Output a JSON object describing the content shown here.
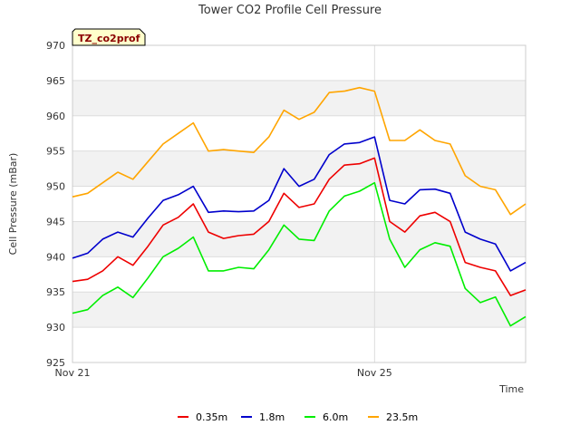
{
  "chart_data": {
    "type": "line",
    "title": "Tower CO2 Profile Cell Pressure",
    "xlabel": "Time",
    "ylabel": "Cell Pressure (mBar)",
    "badge": "TZ_co2prof",
    "ylim": [
      925,
      970
    ],
    "xlim": [
      0,
      7.5
    ],
    "y_ticks": [
      925,
      930,
      935,
      940,
      945,
      950,
      955,
      960,
      965,
      970
    ],
    "x_ticks": [
      {
        "x": 0,
        "label": "Nov 21"
      },
      {
        "x": 5,
        "label": "Nov 25"
      }
    ],
    "grid": true,
    "legend_position": "bottom",
    "series": [
      {
        "name": "0.35m",
        "color": "#ee0000",
        "x": [
          0,
          0.25,
          0.5,
          0.75,
          1.0,
          1.25,
          1.5,
          1.75,
          2.0,
          2.25,
          2.5,
          2.75,
          3.0,
          3.25,
          3.5,
          3.75,
          4.0,
          4.25,
          4.5,
          4.75,
          5.0,
          5.25,
          5.5,
          5.75,
          6.0,
          6.25,
          6.5,
          6.75,
          7.0,
          7.25,
          7.5
        ],
        "values": [
          936.5,
          936.8,
          938.0,
          940.0,
          938.8,
          941.5,
          944.5,
          945.6,
          947.5,
          943.5,
          942.6,
          943.0,
          943.2,
          945.0,
          949.0,
          947.0,
          947.5,
          951.0,
          953.0,
          953.2,
          954.0,
          945.0,
          943.5,
          945.8,
          946.3,
          945.0,
          939.2,
          938.5,
          938.0,
          934.5,
          935.3
        ]
      },
      {
        "name": "1.8m",
        "color": "#0000cc",
        "x": [
          0,
          0.25,
          0.5,
          0.75,
          1.0,
          1.25,
          1.5,
          1.75,
          2.0,
          2.25,
          2.5,
          2.75,
          3.0,
          3.25,
          3.5,
          3.75,
          4.0,
          4.25,
          4.5,
          4.75,
          5.0,
          5.25,
          5.5,
          5.75,
          6.0,
          6.25,
          6.5,
          6.75,
          7.0,
          7.25,
          7.5
        ],
        "values": [
          939.8,
          940.5,
          942.5,
          943.5,
          942.8,
          945.5,
          948.0,
          948.8,
          950.0,
          946.3,
          946.5,
          946.4,
          946.5,
          948.0,
          952.5,
          950.0,
          951.0,
          954.5,
          956.0,
          956.2,
          957.0,
          948.0,
          947.5,
          949.5,
          949.6,
          949.0,
          943.5,
          942.5,
          941.8,
          938.0,
          939.2
        ]
      },
      {
        "name": "6.0m",
        "color": "#00ee00",
        "x": [
          0,
          0.25,
          0.5,
          0.75,
          1.0,
          1.25,
          1.5,
          1.75,
          2.0,
          2.25,
          2.5,
          2.75,
          3.0,
          3.25,
          3.5,
          3.75,
          4.0,
          4.25,
          4.5,
          4.75,
          5.0,
          5.25,
          5.5,
          5.75,
          6.0,
          6.25,
          6.5,
          6.75,
          7.0,
          7.25,
          7.5
        ],
        "values": [
          932.0,
          932.5,
          934.5,
          935.7,
          934.2,
          937.0,
          940.0,
          941.2,
          942.8,
          938.0,
          938.0,
          938.5,
          938.3,
          941.0,
          944.5,
          942.5,
          942.3,
          946.5,
          948.6,
          949.3,
          950.5,
          942.5,
          938.5,
          941.0,
          942.0,
          941.5,
          935.5,
          933.5,
          934.3,
          930.2,
          931.5
        ]
      },
      {
        "name": "23.5m",
        "color": "#ffa500",
        "x": [
          0,
          0.25,
          0.5,
          0.75,
          1.0,
          1.25,
          1.5,
          1.75,
          2.0,
          2.25,
          2.5,
          2.75,
          3.0,
          3.25,
          3.5,
          3.75,
          4.0,
          4.25,
          4.5,
          4.75,
          5.0,
          5.25,
          5.5,
          5.75,
          6.0,
          6.25,
          6.5,
          6.75,
          7.0,
          7.25,
          7.5
        ],
        "values": [
          948.5,
          949.0,
          950.5,
          952.0,
          951.0,
          953.5,
          956.0,
          957.5,
          959.0,
          955.0,
          955.2,
          955.0,
          954.8,
          957.0,
          960.8,
          959.5,
          960.5,
          963.3,
          963.5,
          964.0,
          963.5,
          956.5,
          956.5,
          958.0,
          956.5,
          956.0,
          951.5,
          950.0,
          949.5,
          946.0,
          947.5
        ]
      }
    ]
  }
}
